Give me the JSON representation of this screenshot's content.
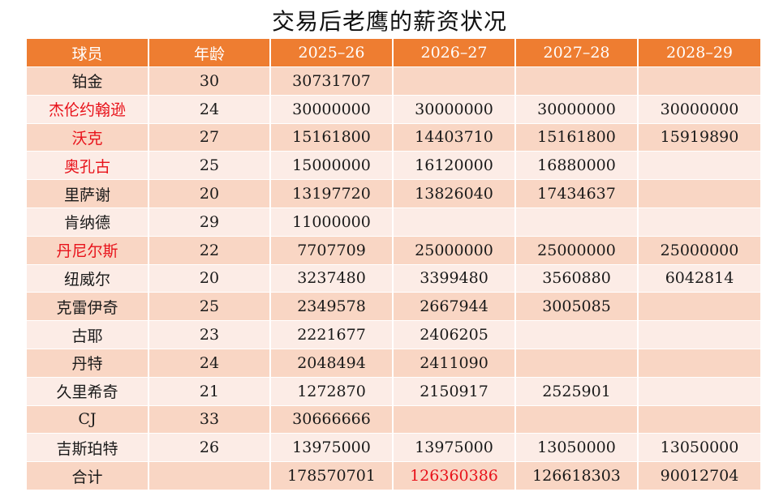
{
  "title": "交易后老鹰的薪资状况",
  "colors": {
    "header_bg": "#ee7d31",
    "row_dark": "#f9d6c4",
    "row_light": "#fcece6",
    "highlight_text": "#e8121a"
  },
  "table": {
    "headers": [
      "球员",
      "年龄",
      "2025–26",
      "2026–27",
      "2027–28",
      "2028–29"
    ],
    "rows": [
      {
        "name": "铂金",
        "age": "30",
        "y1": "30731707",
        "y2": "",
        "y3": "",
        "y4": "",
        "highlight": false
      },
      {
        "name": "杰伦约翰逊",
        "age": "24",
        "y1": "30000000",
        "y2": "30000000",
        "y3": "30000000",
        "y4": "30000000",
        "highlight": true
      },
      {
        "name": "沃克",
        "age": "27",
        "y1": "15161800",
        "y2": "14403710",
        "y3": "15161800",
        "y4": "15919890",
        "highlight": true
      },
      {
        "name": "奥孔古",
        "age": "25",
        "y1": "15000000",
        "y2": "16120000",
        "y3": "16880000",
        "y4": "",
        "highlight": true
      },
      {
        "name": "里萨谢",
        "age": "20",
        "y1": "13197720",
        "y2": "13826040",
        "y3": "17434637",
        "y4": "",
        "highlight": false
      },
      {
        "name": "肯纳德",
        "age": "29",
        "y1": "11000000",
        "y2": "",
        "y3": "",
        "y4": "",
        "highlight": false
      },
      {
        "name": "丹尼尔斯",
        "age": "22",
        "y1": "7707709",
        "y2": "25000000",
        "y3": "25000000",
        "y4": "25000000",
        "highlight": true
      },
      {
        "name": "纽威尔",
        "age": "20",
        "y1": "3237480",
        "y2": "3399480",
        "y3": "3560880",
        "y4": "6042814",
        "highlight": false
      },
      {
        "name": "克雷伊奇",
        "age": "25",
        "y1": "2349578",
        "y2": "2667944",
        "y3": "3005085",
        "y4": "",
        "highlight": false
      },
      {
        "name": "古耶",
        "age": "23",
        "y1": "2221677",
        "y2": "2406205",
        "y3": "",
        "y4": "",
        "highlight": false
      },
      {
        "name": "丹特",
        "age": "24",
        "y1": "2048494",
        "y2": "2411090",
        "y3": "",
        "y4": "",
        "highlight": false
      },
      {
        "name": "久里希奇",
        "age": "21",
        "y1": "1272870",
        "y2": "2150917",
        "y3": "2525901",
        "y4": "",
        "highlight": false
      },
      {
        "name": "CJ",
        "age": "33",
        "y1": "30666666",
        "y2": "",
        "y3": "",
        "y4": "",
        "highlight": false
      },
      {
        "name": "吉斯珀特",
        "age": "26",
        "y1": "13975000",
        "y2": "13975000",
        "y3": "13050000",
        "y4": "13050000",
        "highlight": false
      }
    ],
    "total": {
      "name": "合计",
      "age": "",
      "y1": "178570701",
      "y2": "126360386",
      "y3": "126618303",
      "y4": "90012704",
      "y2_highlight": true
    }
  }
}
